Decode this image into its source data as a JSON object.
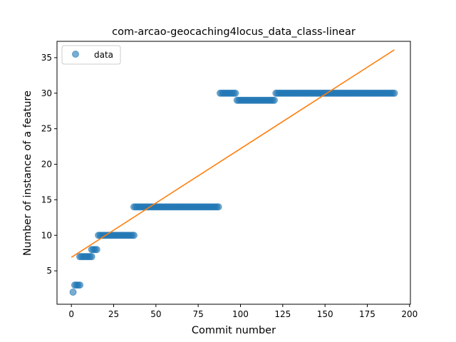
{
  "chart_data": {
    "type": "scatter",
    "title": "com-arcao-geocaching4locus_data_class-linear",
    "xlabel": "Commit number",
    "ylabel": "Number of instance of a feature",
    "xlim": [
      -8.5,
      200.5
    ],
    "ylim": [
      0.3,
      37.3
    ],
    "xticks": [
      0,
      25,
      50,
      75,
      100,
      125,
      150,
      175,
      200
    ],
    "yticks": [
      5,
      10,
      15,
      20,
      25,
      30,
      35
    ],
    "legend": {
      "position": "top-left",
      "entries": [
        "data"
      ]
    },
    "grid": false,
    "colors": {
      "data": "#1f77b4",
      "fit": "#ff7f0e"
    },
    "series": [
      {
        "name": "data",
        "kind": "scatter",
        "segments": [
          {
            "x_start": 1,
            "x_end": 1,
            "y": 2
          },
          {
            "x_start": 2,
            "x_end": 5,
            "y": 3
          },
          {
            "x_start": 5,
            "x_end": 12,
            "y": 7
          },
          {
            "x_start": 12,
            "x_end": 15,
            "y": 8
          },
          {
            "x_start": 16,
            "x_end": 37,
            "y": 10
          },
          {
            "x_start": 37,
            "x_end": 87,
            "y": 14
          },
          {
            "x_start": 88,
            "x_end": 97,
            "y": 30
          },
          {
            "x_start": 98,
            "x_end": 120,
            "y": 29
          },
          {
            "x_start": 121,
            "x_end": 191,
            "y": 30
          }
        ]
      },
      {
        "name": "",
        "kind": "line",
        "x": [
          0,
          191
        ],
        "y": [
          6.9,
          36.1
        ]
      }
    ]
  }
}
